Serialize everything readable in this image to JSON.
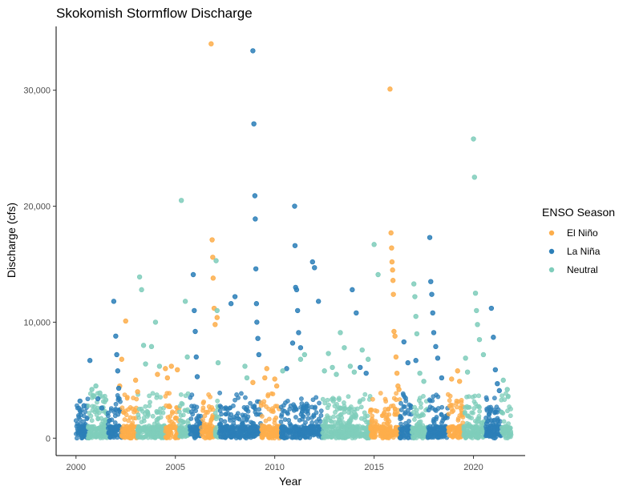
{
  "chart_data": {
    "type": "scatter",
    "title": "Skokomish Stormflow Discharge",
    "xlabel": "Year",
    "ylabel": "Discharge (cfs)",
    "xlim": [
      1999.0,
      2022.6
    ],
    "ylim": [
      -1500,
      35500
    ],
    "x_ticks": [
      2000,
      2005,
      2010,
      2015,
      2020
    ],
    "y_ticks": [
      0,
      10000,
      20000,
      30000
    ],
    "y_tick_labels": [
      "0",
      "10,000",
      "20,000",
      "30,000"
    ],
    "grid": false,
    "legend": {
      "title": "ENSO Season",
      "placement": "right",
      "entries": [
        "El Niño",
        "La Niña",
        "Neutral"
      ]
    },
    "colors": {
      "El Niño": "#fdae4b",
      "La Niña": "#2c7fb8",
      "Neutral": "#7fcdbb"
    },
    "seasons": [
      {
        "start": 2000.0,
        "end": 2000.6,
        "label": "La Niña"
      },
      {
        "start": 2000.6,
        "end": 2001.6,
        "label": "Neutral"
      },
      {
        "start": 2001.6,
        "end": 2002.3,
        "label": "La Niña"
      },
      {
        "start": 2002.3,
        "end": 2003.1,
        "label": "El Niño"
      },
      {
        "start": 2003.1,
        "end": 2004.5,
        "label": "Neutral"
      },
      {
        "start": 2004.5,
        "end": 2005.2,
        "label": "El Niño"
      },
      {
        "start": 2005.2,
        "end": 2005.7,
        "label": "Neutral"
      },
      {
        "start": 2005.7,
        "end": 2006.3,
        "label": "La Niña"
      },
      {
        "start": 2006.3,
        "end": 2007.0,
        "label": "El Niño"
      },
      {
        "start": 2007.0,
        "end": 2007.2,
        "label": "Neutral"
      },
      {
        "start": 2007.2,
        "end": 2009.3,
        "label": "La Niña"
      },
      {
        "start": 2009.3,
        "end": 2010.3,
        "label": "El Niño"
      },
      {
        "start": 2010.3,
        "end": 2011.4,
        "label": "La Niña"
      },
      {
        "start": 2011.4,
        "end": 2012.4,
        "label": "La Niña"
      },
      {
        "start": 2012.4,
        "end": 2014.8,
        "label": "Neutral"
      },
      {
        "start": 2014.8,
        "end": 2016.3,
        "label": "El Niño"
      },
      {
        "start": 2016.3,
        "end": 2016.9,
        "label": "La Niña"
      },
      {
        "start": 2016.9,
        "end": 2017.7,
        "label": "Neutral"
      },
      {
        "start": 2017.7,
        "end": 2018.7,
        "label": "La Niña"
      },
      {
        "start": 2018.7,
        "end": 2019.5,
        "label": "El Niño"
      },
      {
        "start": 2019.5,
        "end": 2020.6,
        "label": "Neutral"
      },
      {
        "start": 2020.6,
        "end": 2021.4,
        "label": "La Niña"
      },
      {
        "start": 2021.4,
        "end": 2021.9,
        "label": "Neutral"
      }
    ],
    "series": [
      {
        "name": "El Niño",
        "x": [
          2002.2,
          2002.3,
          2002.5,
          2003.0,
          2003.1,
          2004.1,
          2004.5,
          2004.6,
          2004.8,
          2005.1,
          2006.8,
          2006.85,
          2006.88,
          2006.9,
          2006.95,
          2007.0,
          2007.1,
          2008.9,
          2009.5,
          2009.6,
          2010.0,
          2010.1,
          2015.8,
          2015.85,
          2015.88,
          2015.9,
          2015.93,
          2015.95,
          2015.97,
          2016.0,
          2016.05,
          2016.1,
          2016.15,
          2016.2,
          2016.25,
          2018.9,
          2019.2,
          2019.3
        ],
        "y": [
          4500,
          6800,
          10100,
          5000,
          4000,
          5500,
          6000,
          5200,
          6200,
          5900,
          34000,
          17100,
          15600,
          13800,
          11200,
          9800,
          10400,
          4800,
          5200,
          6000,
          5100,
          4500,
          30100,
          17700,
          16400,
          15200,
          14500,
          13600,
          12400,
          9200,
          8800,
          7000,
          5600,
          4500,
          4200,
          5100,
          5800,
          4900
        ]
      },
      {
        "name": "La Niña",
        "x": [
          2000.2,
          2000.4,
          2000.7,
          2001.1,
          2001.3,
          2001.9,
          2002.0,
          2002.05,
          2002.1,
          2002.15,
          2005.9,
          2005.95,
          2006.0,
          2006.05,
          2006.1,
          2007.8,
          2008.0,
          2008.9,
          2008.95,
          2009.0,
          2009.02,
          2009.05,
          2009.08,
          2009.1,
          2009.15,
          2009.2,
          2010.6,
          2010.9,
          2011.0,
          2011.02,
          2011.05,
          2011.1,
          2011.15,
          2011.2,
          2011.3,
          2011.9,
          2012.0,
          2012.2,
          2013.9,
          2014.1,
          2014.3,
          2014.6,
          2016.5,
          2016.7,
          2017.1,
          2017.8,
          2017.85,
          2017.9,
          2017.95,
          2018.0,
          2018.1,
          2018.2,
          2018.4,
          2020.9,
          2021.0,
          2021.1,
          2021.2,
          2021.3
        ],
        "y": [
          3200,
          2800,
          6700,
          3400,
          2600,
          11800,
          8800,
          7200,
          5800,
          4300,
          14100,
          11000,
          9200,
          7000,
          5300,
          11600,
          12200,
          33400,
          27100,
          20900,
          18900,
          14600,
          11600,
          10000,
          8600,
          7200,
          6000,
          8200,
          20000,
          16600,
          13000,
          12800,
          11000,
          9100,
          7800,
          15200,
          14700,
          11800,
          12800,
          10800,
          6100,
          5600,
          8300,
          6500,
          6700,
          17300,
          13500,
          12400,
          10800,
          9100,
          7900,
          6900,
          5200,
          11200,
          8700,
          5900,
          4700,
          4100
        ]
      },
      {
        "name": "Neutral",
        "x": [
          2000.8,
          2000.9,
          2001.0,
          2001.2,
          2001.5,
          2003.2,
          2003.3,
          2003.4,
          2003.5,
          2003.8,
          2004.0,
          2004.2,
          2005.3,
          2005.5,
          2005.6,
          2007.05,
          2007.1,
          2007.15,
          2008.5,
          2008.6,
          2010.4,
          2011.3,
          2011.5,
          2012.5,
          2012.7,
          2012.9,
          2013.1,
          2013.3,
          2013.5,
          2013.8,
          2014.0,
          2014.4,
          2014.7,
          2015.0,
          2015.2,
          2017.0,
          2017.05,
          2017.1,
          2017.15,
          2017.3,
          2017.5,
          2019.6,
          2019.7,
          2020.0,
          2020.05,
          2020.1,
          2020.15,
          2020.2,
          2020.3,
          2020.5,
          2021.5,
          2021.7
        ],
        "y": [
          4200,
          3600,
          4500,
          3900,
          3300,
          13900,
          12800,
          8000,
          6400,
          7900,
          10000,
          6200,
          20500,
          11800,
          7000,
          15300,
          11000,
          6500,
          6200,
          5200,
          5800,
          6800,
          7200,
          5800,
          7300,
          6100,
          5500,
          9100,
          7800,
          6200,
          5700,
          7600,
          6800,
          16700,
          14100,
          13300,
          12200,
          10500,
          9000,
          5600,
          4900,
          6900,
          5700,
          25800,
          22500,
          12500,
          11000,
          9800,
          8500,
          7200,
          5000,
          4200
        ]
      }
    ]
  }
}
